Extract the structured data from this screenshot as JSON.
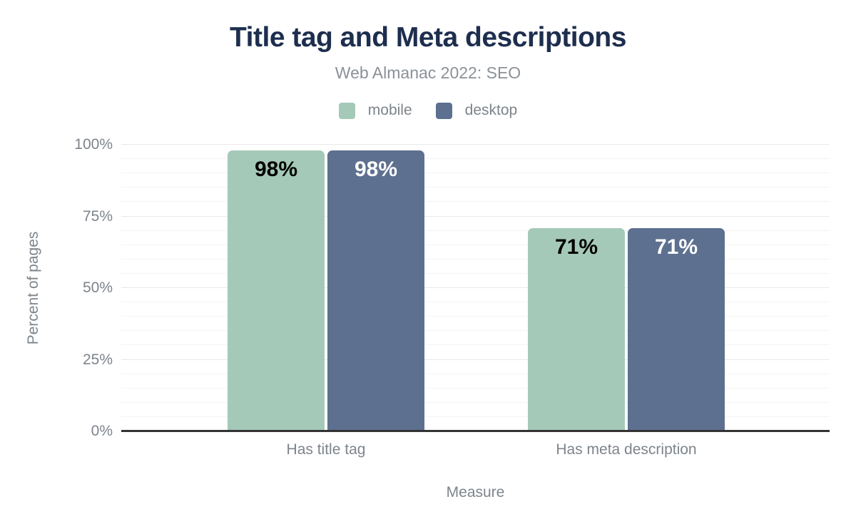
{
  "chart_data": {
    "type": "bar",
    "title": "Title tag and Meta descriptions",
    "subtitle": "Web Almanac 2022: SEO",
    "categories": [
      "Has title tag",
      "Has meta description"
    ],
    "series": [
      {
        "name": "mobile",
        "values": [
          98,
          71
        ],
        "color": "#a5c9b8",
        "value_label_color": "#000000"
      },
      {
        "name": "desktop",
        "values": [
          98,
          71
        ],
        "color": "#5d7090",
        "value_label_color": "#ffffff"
      }
    ],
    "value_label_format": "{v}%",
    "xlabel": "Measure",
    "ylabel": "Percent of pages",
    "ylim": [
      0,
      100
    ],
    "yticks": [
      0,
      25,
      50,
      75,
      100
    ],
    "ytick_format": "{v}%",
    "y_minor_step": 5,
    "grid": true,
    "legend_position": "top",
    "colors": {
      "title": "#1d2e4e",
      "subtitle": "#8b9198",
      "axis_text": "#7d848b",
      "baseline": "#333333",
      "grid_major": "#e9e9e9",
      "grid_minor": "#f4f4f4"
    }
  }
}
